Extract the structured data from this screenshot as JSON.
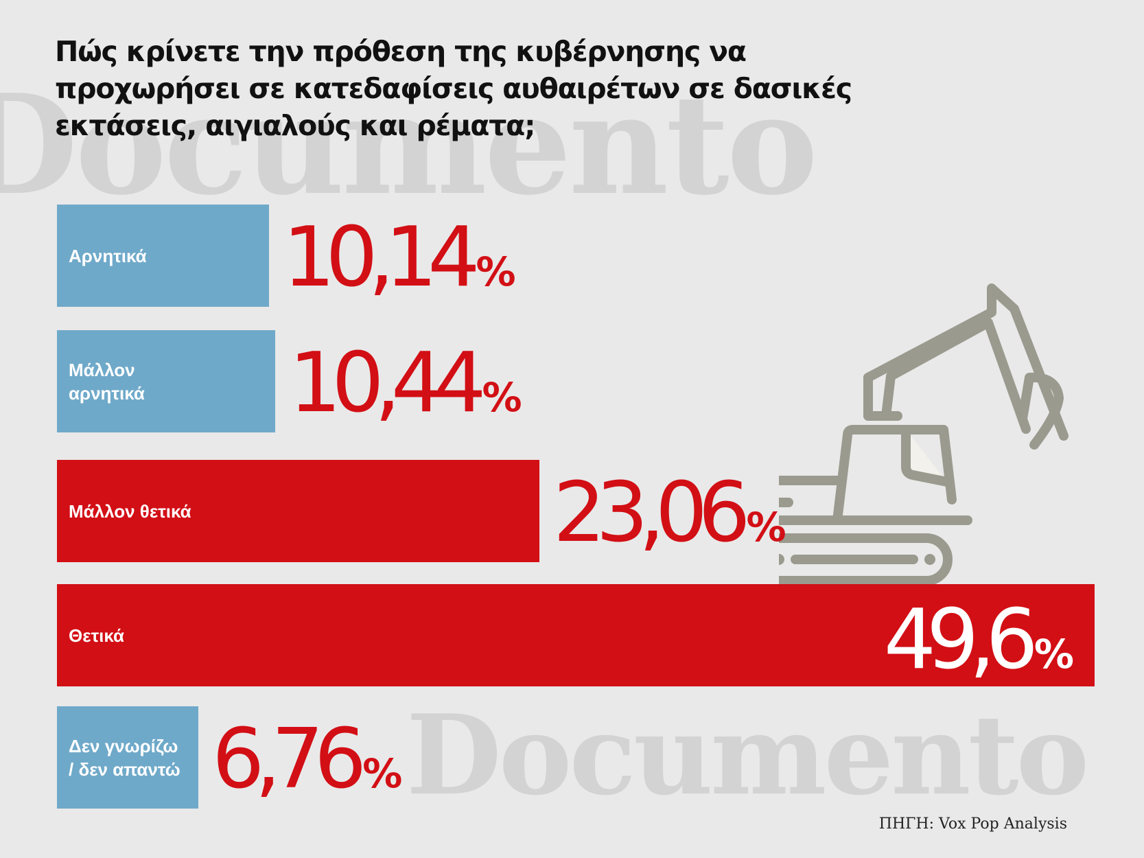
{
  "watermark": "Documento",
  "title": "Πώς κρίνετε την πρόθεση της κυβέρνησης να προχωρήσει σε κατεδαφίσεις αυθαιρέτων σε δασικές εκτάσεις, αιγιαλούς και ρέματα;",
  "source": "ΠΗΓΗ: Vox Pop Analysis",
  "colors": {
    "negative": "#6fa9c9",
    "positive": "#d20f15",
    "background": "#e9e9e9",
    "icon": "#9a9a8f"
  },
  "icon": "excavator-icon",
  "chart_data": {
    "type": "bar",
    "orientation": "horizontal",
    "categories": [
      "Αρνητικά",
      "Μάλλον\nαρνητικά",
      "Μάλλον θετικά",
      "Θετικά",
      "Δεν γνωρίζω\n/ δεν απαντώ"
    ],
    "values": [
      10.14,
      10.44,
      23.06,
      49.6,
      6.76
    ],
    "value_labels": [
      "10,14",
      "10,44",
      "23,06",
      "49,6",
      "6,76"
    ],
    "unit": "%",
    "bar_colors": [
      "#6fa9c9",
      "#6fa9c9",
      "#d20f15",
      "#d20f15",
      "#6fa9c9"
    ],
    "title": "Πώς κρίνετε την πρόθεση της κυβέρνησης να προχωρήσει σε κατεδαφίσεις αυθαιρέτων σε δασικές εκτάσεις, αιγιαλούς και ρέματα;",
    "xlim": [
      0,
      49.6
    ]
  }
}
